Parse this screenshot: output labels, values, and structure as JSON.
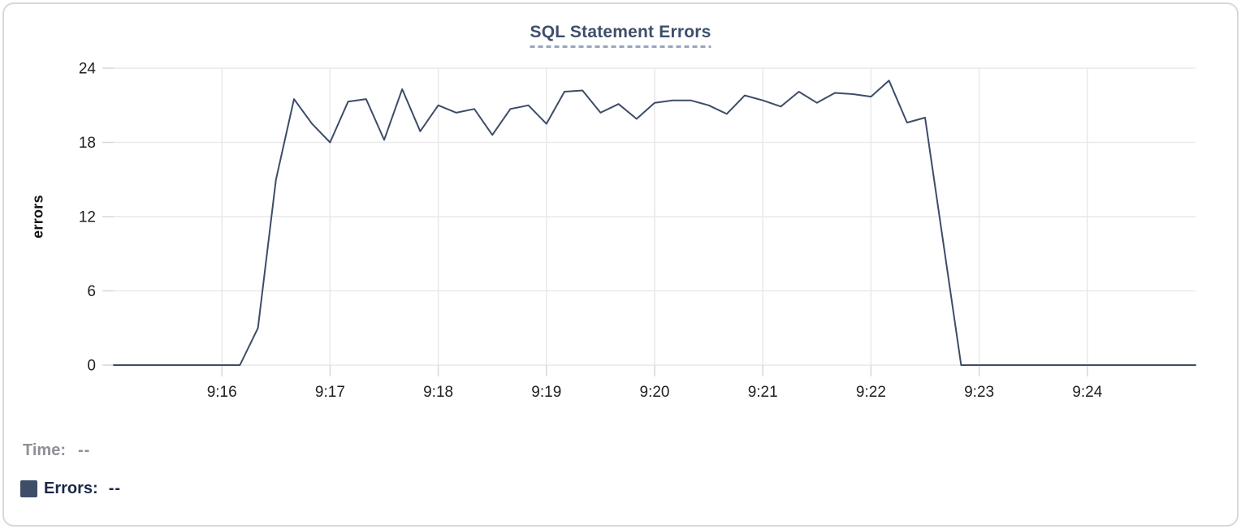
{
  "colors": {
    "background": "#ffffff",
    "card_border": "#d8d8d8",
    "title": "#3e4f6c",
    "title_underline": "#98a6bd",
    "grid": "#e9e9e9",
    "tick_stub": "#d7d7d7",
    "tick_text": "#202020",
    "line": "#3d4c68",
    "swatch": "#3e4e6a",
    "time_text": "#8e9095",
    "errors_text": "#1d2849"
  },
  "legend": {
    "time_label": "Time:",
    "time_value": "--",
    "errors_label": "Errors:",
    "errors_value": "--"
  },
  "chart_data": {
    "type": "line",
    "title": "SQL Statement Errors",
    "xlabel": "",
    "ylabel": "errors",
    "ylim": [
      0,
      24
    ],
    "y_ticks": [
      0,
      6,
      12,
      18,
      24
    ],
    "x_ticks": [
      "9:16",
      "9:17",
      "9:18",
      "9:19",
      "9:20",
      "9:21",
      "9:22",
      "9:23",
      "9:24"
    ],
    "x_range": [
      "9:15:00",
      "9:25:00"
    ],
    "grid": true,
    "legend_position": "bottom-left",
    "series": [
      {
        "name": "Errors",
        "color": "#3d4c68",
        "x": [
          "9:15:00",
          "9:15:10",
          "9:15:20",
          "9:15:30",
          "9:15:40",
          "9:15:50",
          "9:16:00",
          "9:16:10",
          "9:16:20",
          "9:16:30",
          "9:16:40",
          "9:16:50",
          "9:17:00",
          "9:17:10",
          "9:17:20",
          "9:17:30",
          "9:17:40",
          "9:17:50",
          "9:18:00",
          "9:18:10",
          "9:18:20",
          "9:18:30",
          "9:18:40",
          "9:18:50",
          "9:19:00",
          "9:19:10",
          "9:19:20",
          "9:19:30",
          "9:19:40",
          "9:19:50",
          "9:20:00",
          "9:20:10",
          "9:20:20",
          "9:20:30",
          "9:20:40",
          "9:20:50",
          "9:21:00",
          "9:21:10",
          "9:21:20",
          "9:21:30",
          "9:21:40",
          "9:21:50",
          "9:22:00",
          "9:22:10",
          "9:22:20",
          "9:22:30",
          "9:22:40",
          "9:22:50",
          "9:23:00",
          "9:23:10",
          "9:23:20",
          "9:23:30",
          "9:23:40",
          "9:23:50",
          "9:24:00",
          "9:24:10",
          "9:24:20",
          "9:24:30",
          "9:24:40",
          "9:24:50",
          "9:25:00"
        ],
        "values": [
          0,
          0,
          0,
          0,
          0,
          0,
          0,
          0,
          3,
          15,
          21.5,
          19.5,
          18,
          21.3,
          21.5,
          18.2,
          22.3,
          18.9,
          21,
          20.4,
          20.7,
          18.6,
          20.7,
          21,
          19.5,
          22.1,
          22.2,
          20.4,
          21.1,
          19.9,
          21.2,
          21.4,
          21.4,
          21,
          20.3,
          21.8,
          21.4,
          20.9,
          22.1,
          21.2,
          22,
          21.9,
          21.7,
          23,
          19.6,
          20,
          10,
          0,
          0,
          0,
          0,
          0,
          0,
          0,
          0,
          0,
          0,
          0,
          0,
          0,
          0
        ]
      }
    ]
  }
}
